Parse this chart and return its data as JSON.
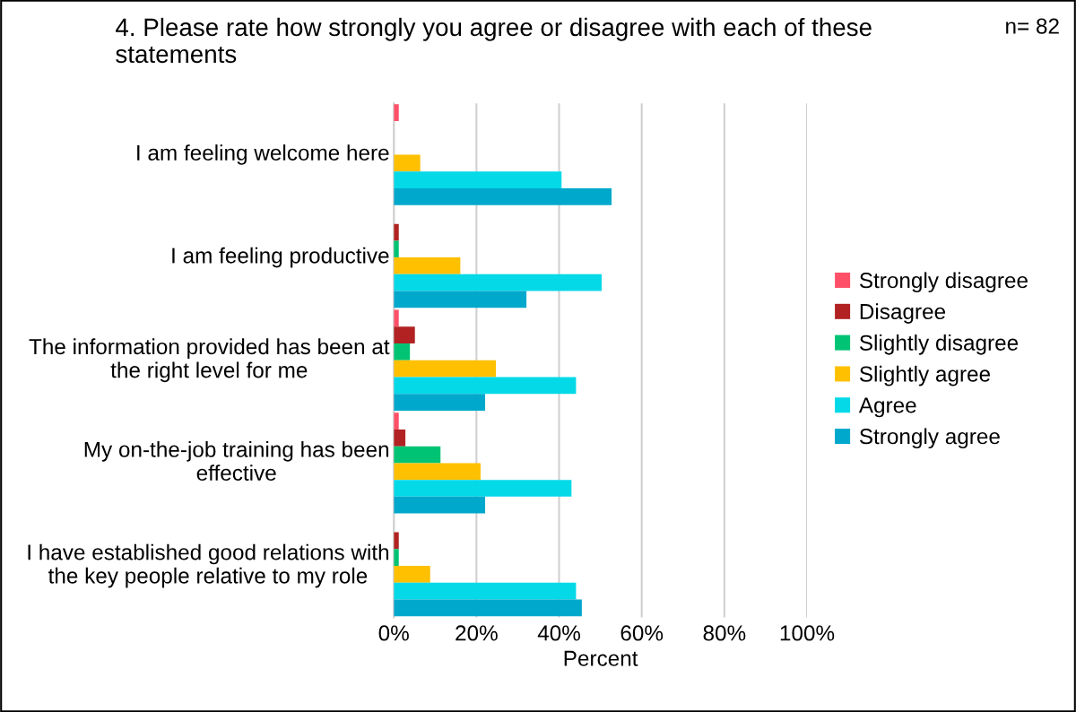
{
  "chart_data": {
    "type": "bar",
    "orientation": "horizontal",
    "title": "4. Please rate how strongly you agree or disagree with each of these statements",
    "annotations": [
      "n= 82"
    ],
    "xlabel": "Percent",
    "categories": [
      "I am feeling welcome here",
      "I am feeling productive",
      "The information provided has been at the right level for me",
      "My on-the-job training has been effective",
      "I have established good relations with the key people relative to my role"
    ],
    "series": [
      {
        "name": "Strongly disagree",
        "color": "#ff5068",
        "values": [
          1.2,
          0,
          1.2,
          1.2,
          0
        ]
      },
      {
        "name": "Disagree",
        "color": "#b22222",
        "values": [
          0,
          1.2,
          5.1,
          2.8,
          1.2
        ]
      },
      {
        "name": "Slightly disagree",
        "color": "#00c473",
        "values": [
          0,
          1.2,
          3.9,
          11.3,
          1.2
        ]
      },
      {
        "name": "Slightly agree",
        "color": "#ffc000",
        "values": [
          6.4,
          16.1,
          24.7,
          21.0,
          8.8
        ]
      },
      {
        "name": "Agree",
        "color": "#04d9e8",
        "values": [
          40.6,
          50.3,
          44.1,
          43.0,
          44.1
        ]
      },
      {
        "name": "Strongly agree",
        "color": "#00a8cc",
        "values": [
          52.7,
          32.1,
          22.1,
          22.1,
          45.5
        ]
      }
    ],
    "xlim": [
      0,
      100
    ],
    "xticks": [
      {
        "value": 0,
        "label": "0%"
      },
      {
        "value": 20,
        "label": "20%"
      },
      {
        "value": 40,
        "label": "40%"
      },
      {
        "value": 60,
        "label": "60%"
      },
      {
        "value": 80,
        "label": "80%"
      },
      {
        "value": 100,
        "label": "100%"
      }
    ],
    "grid": "x",
    "legend": "right"
  }
}
